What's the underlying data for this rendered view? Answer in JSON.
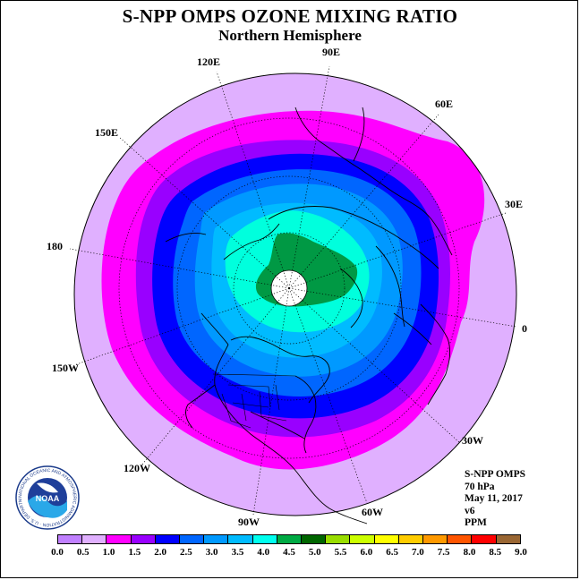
{
  "title": "S-NPP OMPS OZONE MIXING RATIO",
  "subtitle": "Northern Hemisphere",
  "longitude_labels": [
    "90E",
    "60E",
    "30E",
    "0",
    "30W",
    "60W",
    "90W",
    "120W",
    "150W",
    "180",
    "150E",
    "120E"
  ],
  "info": {
    "instrument": "S-NPP OMPS",
    "pressure": "70 hPa",
    "date": "May 11, 2017",
    "version": "v6",
    "units": "PPM"
  },
  "colorbar": {
    "colors": [
      "#c080ff",
      "#e0b0ff",
      "#ff00ff",
      "#9900ff",
      "#0000ff",
      "#0066ff",
      "#0099ff",
      "#00bbff",
      "#00ffee",
      "#00aa44",
      "#006600",
      "#99dd00",
      "#ccff00",
      "#ffff00",
      "#ffcc00",
      "#ff9900",
      "#ff5500",
      "#ff0000",
      "#996633"
    ],
    "tick_labels": [
      "0.0",
      "0.5",
      "1.0",
      "1.5",
      "2.0",
      "2.5",
      "3.0",
      "3.5",
      "4.0",
      "4.5",
      "5.0",
      "5.5",
      "6.0",
      "6.5",
      "7.0",
      "7.5",
      "8.0",
      "8.5",
      "9.0"
    ]
  },
  "logo": {
    "name": "noaa-logo",
    "text": "NOAA",
    "ring_text": "NATIONAL OCEANIC AND ATMOSPHERIC ADMINISTRATION · U.S. DEPARTMENT OF COMMERCE"
  }
}
